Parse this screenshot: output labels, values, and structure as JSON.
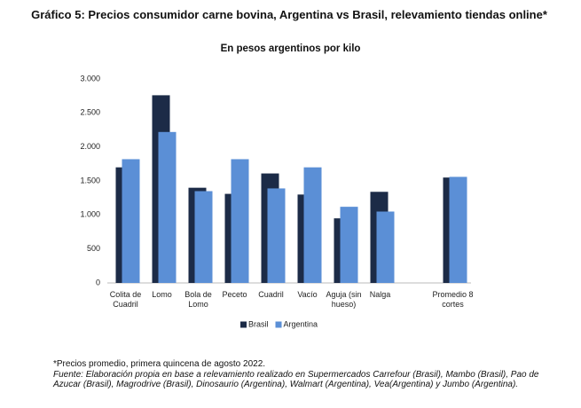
{
  "chart_data": {
    "type": "bar",
    "title": "Gráfico 5: Precios consumidor carne bovina, Argentina vs Brasil, relevamiento tiendas online*",
    "subtitle": "En pesos argentinos por kilo",
    "categories": [
      "Colita de Cuadril",
      "Lomo",
      "Bola de Lomo",
      "Peceto",
      "Cuadril",
      "Vacío",
      "Aguja (sin hueso)",
      "Nalga",
      null,
      "Promedio 8 cortes"
    ],
    "series": [
      {
        "name": "Brasil",
        "color": "#1c2b47",
        "values": [
          1700,
          2760,
          1400,
          1310,
          1610,
          1300,
          950,
          1340,
          null,
          1550
        ]
      },
      {
        "name": "Argentina",
        "color": "#5b8fd6",
        "values": [
          1820,
          2220,
          1350,
          1820,
          1390,
          1700,
          1120,
          1050,
          null,
          1560
        ]
      }
    ],
    "ylim": [
      0,
      3000
    ],
    "yticks": [
      0,
      500,
      {
        "value": 1000,
        "label": "1.000"
      },
      {
        "value": 1500,
        "label": "1.500"
      },
      {
        "value": 2000,
        "label": "2.000"
      },
      {
        "value": 2500,
        "label": "2.500"
      },
      {
        "value": 3000,
        "label": "3.000"
      }
    ],
    "grid": false,
    "legend": "bottom",
    "notes": [
      "*Precios promedio, primera quincena de agosto 2022.",
      "Fuente: Elaboración propia en base a relevamiento realizado en Supermercados Carrefour (Brasil), Mambo (Brasil), Pao de Azucar (Brasil), Magrodrive (Brasil), Dinosaurio (Argentina), Walmart (Argentina), Vea(Argentina) y Jumbo (Argentina)."
    ]
  }
}
